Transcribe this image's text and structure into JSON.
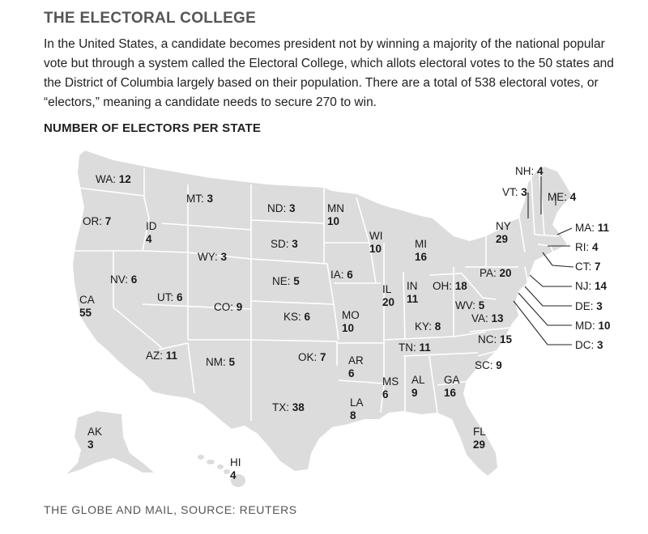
{
  "header": {
    "title": "THE ELECTORAL COLLEGE",
    "intro": "In the United States, a candidate becomes president not by winning a majority of the national popular vote but through a system called the Electoral College, which allots electoral votes to the 50 states and the District of Columbia largely based on their population. There are a total of 538 electoral votes, or “electors,” meaning a candidate needs to secure 270 to win.",
    "subtitle": "NUMBER OF ELECTORS PER STATE"
  },
  "map": {
    "land_color": "#dcdcdc",
    "border_color": "#ffffff",
    "leader_color": "#222222",
    "states": {
      "wa": {
        "name": "WA",
        "value": "12"
      },
      "or": {
        "name": "OR",
        "value": "7"
      },
      "ca": {
        "name": "CA",
        "value": "55"
      },
      "nv": {
        "name": "NV",
        "value": "6"
      },
      "id": {
        "name": "ID",
        "value": "4"
      },
      "mt": {
        "name": "MT",
        "value": "3"
      },
      "wy": {
        "name": "WY",
        "value": "3"
      },
      "ut": {
        "name": "UT",
        "value": "6"
      },
      "az": {
        "name": "AZ",
        "value": "11"
      },
      "co": {
        "name": "CO",
        "value": "9"
      },
      "nm": {
        "name": "NM",
        "value": "5"
      },
      "nd": {
        "name": "ND",
        "value": "3"
      },
      "sd": {
        "name": "SD",
        "value": "3"
      },
      "ne": {
        "name": "NE",
        "value": "5"
      },
      "ks": {
        "name": "KS",
        "value": "6"
      },
      "ok": {
        "name": "OK",
        "value": "7"
      },
      "tx": {
        "name": "TX",
        "value": "38"
      },
      "mn": {
        "name": "MN",
        "value": "10"
      },
      "ia": {
        "name": "IA",
        "value": "6"
      },
      "mo": {
        "name": "MO",
        "value": "10"
      },
      "ar": {
        "name": "AR",
        "value": "6"
      },
      "la": {
        "name": "LA",
        "value": "8"
      },
      "wi": {
        "name": "WI",
        "value": "10"
      },
      "il": {
        "name": "IL",
        "value": "20"
      },
      "mi": {
        "name": "MI",
        "value": "16"
      },
      "in": {
        "name": "IN",
        "value": "11"
      },
      "oh": {
        "name": "OH",
        "value": "18"
      },
      "ky": {
        "name": "KY",
        "value": "8"
      },
      "tn": {
        "name": "TN",
        "value": "11"
      },
      "ms": {
        "name": "MS",
        "value": "6"
      },
      "al": {
        "name": "AL",
        "value": "9"
      },
      "ga": {
        "name": "GA",
        "value": "16"
      },
      "fl": {
        "name": "FL",
        "value": "29"
      },
      "sc": {
        "name": "SC",
        "value": "9"
      },
      "nc": {
        "name": "NC",
        "value": "15"
      },
      "va": {
        "name": "VA",
        "value": "13"
      },
      "wv": {
        "name": "WV",
        "value": "5"
      },
      "pa": {
        "name": "PA",
        "value": "20"
      },
      "ny": {
        "name": "NY",
        "value": "29"
      },
      "vt": {
        "name": "VT",
        "value": "3"
      },
      "nh": {
        "name": "NH",
        "value": "4"
      },
      "me": {
        "name": "ME",
        "value": "4"
      },
      "ma": {
        "name": "MA",
        "value": "11"
      },
      "ri": {
        "name": "RI",
        "value": "4"
      },
      "ct": {
        "name": "CT",
        "value": "7"
      },
      "nj": {
        "name": "NJ",
        "value": "14"
      },
      "de": {
        "name": "DE",
        "value": "3"
      },
      "md": {
        "name": "MD",
        "value": "10"
      },
      "dc": {
        "name": "DC",
        "value": "3"
      },
      "ak": {
        "name": "AK",
        "value": "3"
      },
      "hi": {
        "name": "HI",
        "value": "4"
      }
    }
  },
  "footer": {
    "source": "THE GLOBE AND MAIL, SOURCE: REUTERS"
  }
}
